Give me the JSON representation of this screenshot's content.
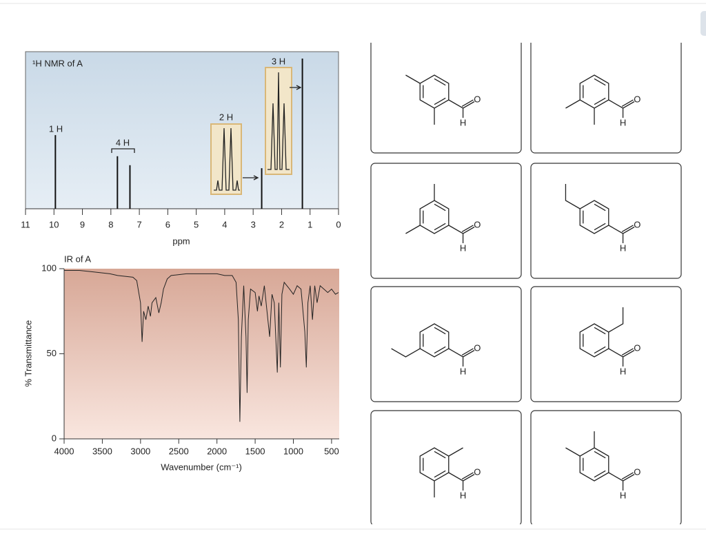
{
  "chart_data": [
    {
      "type": "stem",
      "title": "¹H NMR of A",
      "xlabel": "ppm",
      "xlim": [
        11,
        0
      ],
      "xticks": [
        11,
        10,
        9,
        8,
        7,
        6,
        5,
        4,
        3,
        2,
        1,
        0
      ],
      "ylim": [
        0,
        100
      ],
      "x": [
        9.95,
        7.77,
        7.33,
        2.7,
        1.27
      ],
      "values": [
        49,
        35,
        29,
        27,
        100
      ],
      "color": "#111111",
      "annotations": [
        "1 H",
        "4 H",
        "2 H",
        "3 H"
      ]
    },
    {
      "type": "line",
      "title": "IR of A",
      "xlabel": "Wavenumber (cm⁻¹)",
      "ylabel": "% Transmittance",
      "xlim": [
        4000,
        400
      ],
      "ylim": [
        0,
        100
      ],
      "xticks": [
        4000,
        3500,
        3000,
        2500,
        2000,
        1500,
        1000,
        500
      ],
      "yticks": [
        0,
        50,
        100
      ],
      "color": "#222222",
      "x": [
        4000,
        3800,
        3600,
        3400,
        3300,
        3100,
        3050,
        3000,
        2980,
        2960,
        2930,
        2900,
        2870,
        2850,
        2800,
        2760,
        2730,
        2700,
        2650,
        2600,
        2400,
        2200,
        2000,
        1900,
        1800,
        1750,
        1720,
        1700,
        1680,
        1650,
        1620,
        1605,
        1590,
        1560,
        1500,
        1470,
        1450,
        1420,
        1380,
        1310,
        1280,
        1250,
        1210,
        1190,
        1170,
        1150,
        1120,
        1050,
        1000,
        950,
        900,
        850,
        830,
        810,
        780,
        750,
        720,
        690,
        650,
        600,
        550,
        500,
        450,
        410
      ],
      "values": [
        99,
        99,
        98,
        97,
        96,
        95,
        93,
        80,
        57,
        75,
        70,
        78,
        72,
        80,
        83,
        74,
        80,
        88,
        94,
        96,
        97,
        97,
        97,
        96,
        96,
        92,
        70,
        10,
        60,
        90,
        60,
        27,
        70,
        88,
        86,
        75,
        84,
        78,
        90,
        60,
        85,
        80,
        39,
        80,
        42,
        85,
        92,
        88,
        85,
        90,
        88,
        63,
        42,
        80,
        90,
        70,
        90,
        80,
        90,
        88,
        86,
        88,
        85,
        86
      ]
    }
  ],
  "choices": [
    [
      "O",
      "H"
    ],
    [
      "O",
      "H"
    ],
    [
      "O",
      "H"
    ],
    [
      "O",
      "H"
    ],
    [
      "O",
      "H"
    ],
    [
      "O",
      "H"
    ],
    [
      "O",
      "H"
    ],
    [
      "O",
      "H"
    ]
  ]
}
